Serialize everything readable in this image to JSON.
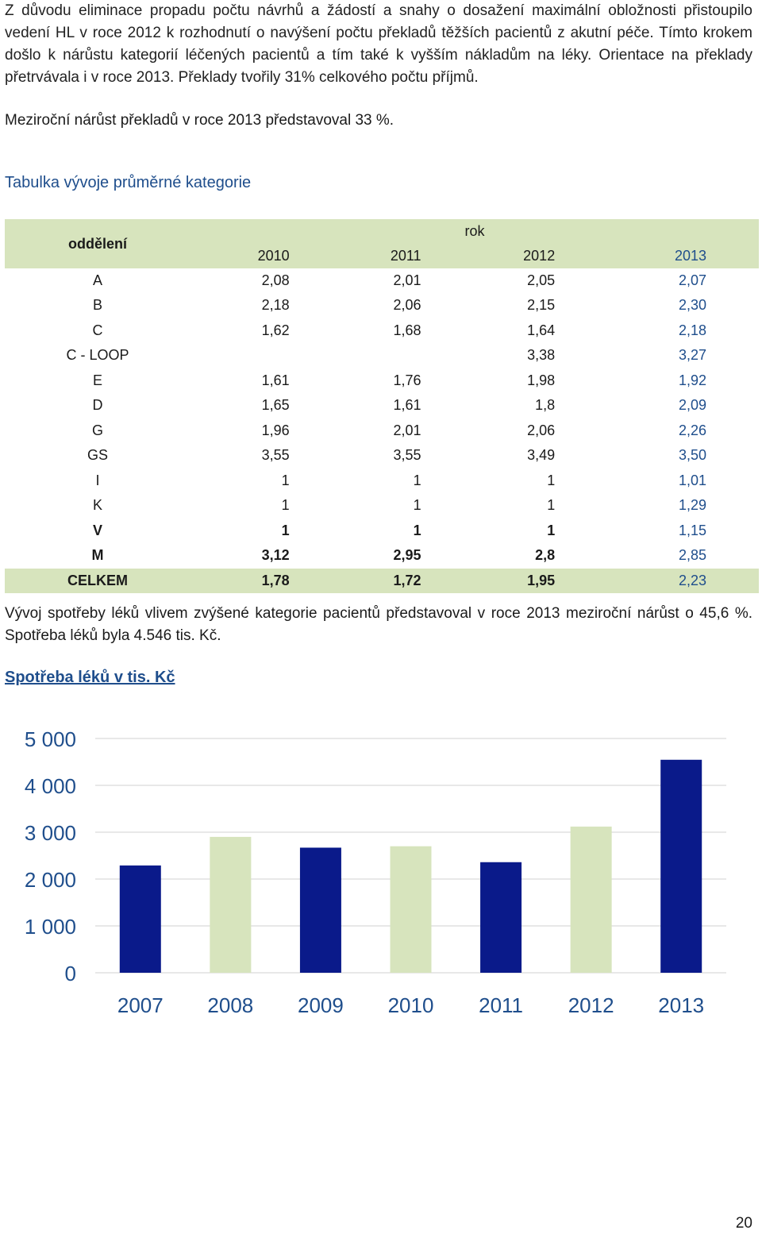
{
  "intro_text": "Z důvodu eliminace propadu počtu návrhů a žádostí a snahy o dosažení maximální obložnosti přistoupilo vedení HL v roce 2012 k rozhodnutí o navýšení počtu překladů těžších pacientů z akutní péče. Tímto krokem došlo k nárůstu kategorií léčených pacientů a tím také k vyšším nákladům na léky. Orientace na překlady přetrvávala i v roce 2013. Překlady tvořily 31% celkového počtu příjmů.",
  "growth_text": "Meziroční nárůst překladů v roce 2013 představoval 33 %.",
  "table": {
    "title": "Tabulka vývoje průměrné kategorie",
    "dept_header": "oddělení",
    "year_header": "rok",
    "years": [
      "2010",
      "2011",
      "2012",
      "2013"
    ],
    "rows": [
      {
        "name": "A",
        "values": [
          "2,08",
          "2,01",
          "2,05",
          "2,07"
        ],
        "bold": false
      },
      {
        "name": "B",
        "values": [
          "2,18",
          "2,06",
          "2,15",
          "2,30"
        ],
        "bold": false
      },
      {
        "name": "C",
        "values": [
          "1,62",
          "1,68",
          "1,64",
          "2,18"
        ],
        "bold": false
      },
      {
        "name": "C - LOOP",
        "values": [
          "",
          "",
          "3,38",
          "3,27"
        ],
        "bold": false
      },
      {
        "name": "E",
        "values": [
          "1,61",
          "1,76",
          "1,98",
          "1,92"
        ],
        "bold": false
      },
      {
        "name": "D",
        "values": [
          "1,65",
          "1,61",
          "1,8",
          "2,09"
        ],
        "bold": false
      },
      {
        "name": "G",
        "values": [
          "1,96",
          "2,01",
          "2,06",
          "2,26"
        ],
        "bold": false
      },
      {
        "name": "GS",
        "values": [
          "3,55",
          "3,55",
          "3,49",
          "3,50"
        ],
        "bold": false
      },
      {
        "name": "I",
        "values": [
          "1",
          "1",
          "1",
          "1,01"
        ],
        "bold": false
      },
      {
        "name": "K",
        "values": [
          "1",
          "1",
          "1",
          "1,29"
        ],
        "bold": false
      },
      {
        "name": "V",
        "values": [
          "1",
          "1",
          "1",
          "1,15"
        ],
        "bold": true
      },
      {
        "name": "M",
        "values": [
          "3,12",
          "2,95",
          "2,8",
          "2,85"
        ],
        "bold": true
      }
    ],
    "total": {
      "name": "CELKEM",
      "values": [
        "1,78",
        "1,72",
        "1,95",
        "2,23"
      ]
    }
  },
  "drug_text": "Vývoj spotřeby léků vlivem zvýšené kategorie pacientů představoval v roce 2013 meziroční nárůst o 45,6 %. Spotřeba léků byla 4.546 tis. Kč.",
  "chart_title": "Spotřeba léků v tis. Kč",
  "colors": {
    "dark_bar": "#0a1a8a",
    "light_bar": "#d7e4bd",
    "axis_text": "#1f4e8c",
    "header_bg": "#d7e4bd"
  },
  "chart_data": {
    "type": "bar",
    "categories": [
      "2007",
      "2008",
      "2009",
      "2010",
      "2011",
      "2012",
      "2013"
    ],
    "values": [
      2290,
      2900,
      2670,
      2700,
      2360,
      3120,
      4546
    ],
    "bar_colors": [
      "#0a1a8a",
      "#d7e4bd",
      "#0a1a8a",
      "#d7e4bd",
      "#0a1a8a",
      "#d7e4bd",
      "#0a1a8a"
    ],
    "yticks": [
      "0",
      "1 000",
      "2 000",
      "3 000",
      "4 000",
      "5 000"
    ],
    "ylim": [
      0,
      5000
    ],
    "grid": "horizontal",
    "legend": "none"
  },
  "page_number": "20"
}
